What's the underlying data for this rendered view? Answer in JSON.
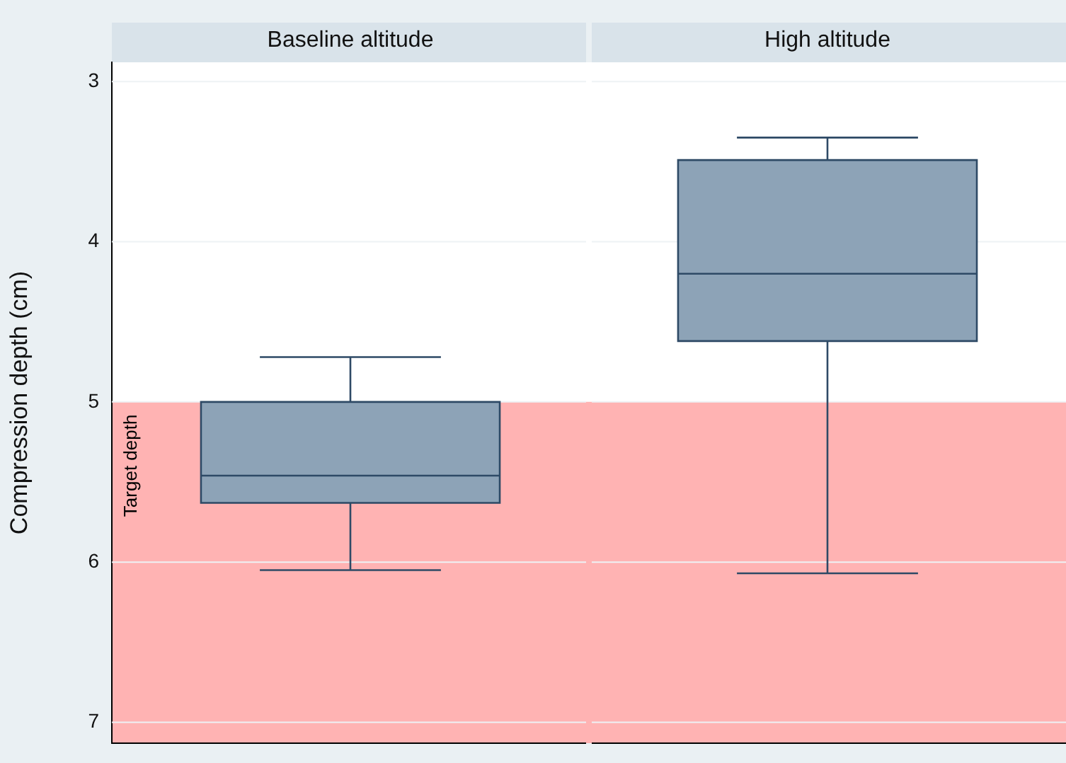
{
  "chart_data": {
    "type": "box",
    "ylabel": "Compression depth (cm)",
    "categories": [
      "Baseline altitude",
      "High altitude"
    ],
    "ylim": [
      7.13,
      2.88
    ],
    "yticks": [
      3,
      4,
      5,
      6,
      7
    ],
    "grid": "y",
    "color": "#8da3b7",
    "boxes": [
      {
        "low": 4.72,
        "q1": 5.0,
        "median": 5.46,
        "q3": 5.63,
        "high": 6.05
      },
      {
        "low": 3.35,
        "q1": 3.49,
        "median": 4.2,
        "q3": 4.62,
        "high": 6.07
      }
    ],
    "bands": [
      {
        "axis": "y",
        "from": 5,
        "to": 7.13,
        "label": "Target depth",
        "color": "#ffb3b3"
      }
    ]
  }
}
